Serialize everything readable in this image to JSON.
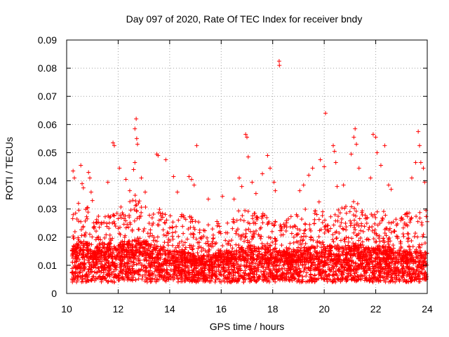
{
  "chart_data": {
    "type": "scatter",
    "title": "Day 097 of 2020, Rate Of TEC Index for receiver bndy",
    "xlabel": "GPS time / hours",
    "ylabel": "ROTI / TECUs",
    "xlim": [
      10,
      24
    ],
    "ylim": [
      0,
      0.09
    ],
    "grid": true,
    "marker": "plus",
    "color": "#ff0000",
    "x_ticks": [
      {
        "value": 10,
        "label": "10"
      },
      {
        "value": 12,
        "label": "12"
      },
      {
        "value": 14,
        "label": "14"
      },
      {
        "value": 16,
        "label": "16"
      },
      {
        "value": 18,
        "label": "18"
      },
      {
        "value": 20,
        "label": "20"
      },
      {
        "value": 22,
        "label": "22"
      },
      {
        "value": 24,
        "label": "24"
      }
    ],
    "y_ticks": [
      {
        "value": 0,
        "label": "0"
      },
      {
        "value": 0.01,
        "label": "0.01"
      },
      {
        "value": 0.02,
        "label": "0.02"
      },
      {
        "value": 0.03,
        "label": "0.03"
      },
      {
        "value": 0.04,
        "label": "0.04"
      },
      {
        "value": 0.05,
        "label": "0.05"
      },
      {
        "value": 0.06,
        "label": "0.06"
      },
      {
        "value": 0.07,
        "label": "0.07"
      },
      {
        "value": 0.08,
        "label": "0.08"
      },
      {
        "value": 0.09,
        "label": "0.09"
      }
    ],
    "series": [
      {
        "name": "ROTI",
        "points": [
          [
            10.25,
            0.0435
          ],
          [
            10.3,
            0.041
          ],
          [
            10.55,
            0.0455
          ],
          [
            10.6,
            0.039
          ],
          [
            10.65,
            0.0375
          ],
          [
            10.85,
            0.043
          ],
          [
            10.9,
            0.041
          ],
          [
            10.95,
            0.036
          ],
          [
            11.0,
            0.033
          ],
          [
            11.6,
            0.0395
          ],
          [
            11.8,
            0.0535
          ],
          [
            11.85,
            0.0525
          ],
          [
            12.05,
            0.0445
          ],
          [
            12.3,
            0.0405
          ],
          [
            12.45,
            0.0365
          ],
          [
            12.6,
            0.044
          ],
          [
            12.65,
            0.0465
          ],
          [
            12.65,
            0.0585
          ],
          [
            12.7,
            0.062
          ],
          [
            12.72,
            0.055
          ],
          [
            12.75,
            0.053
          ],
          [
            12.9,
            0.041
          ],
          [
            13.05,
            0.036
          ],
          [
            13.5,
            0.0495
          ],
          [
            13.55,
            0.049
          ],
          [
            13.85,
            0.0475
          ],
          [
            14.15,
            0.0415
          ],
          [
            14.3,
            0.036
          ],
          [
            14.75,
            0.0415
          ],
          [
            14.85,
            0.0405
          ],
          [
            14.95,
            0.0385
          ],
          [
            15.05,
            0.0525
          ],
          [
            15.5,
            0.0335
          ],
          [
            16.05,
            0.0345
          ],
          [
            16.5,
            0.0335
          ],
          [
            16.7,
            0.041
          ],
          [
            16.8,
            0.038
          ],
          [
            16.95,
            0.0565
          ],
          [
            17.0,
            0.0555
          ],
          [
            17.05,
            0.0485
          ],
          [
            17.2,
            0.0395
          ],
          [
            17.35,
            0.0355
          ],
          [
            17.6,
            0.0425
          ],
          [
            17.8,
            0.049
          ],
          [
            17.9,
            0.0445
          ],
          [
            18.05,
            0.0395
          ],
          [
            18.1,
            0.0365
          ],
          [
            18.25,
            0.0825
          ],
          [
            18.26,
            0.081
          ],
          [
            19.05,
            0.0365
          ],
          [
            19.2,
            0.0385
          ],
          [
            19.4,
            0.042
          ],
          [
            19.55,
            0.0445
          ],
          [
            19.8,
            0.0325
          ],
          [
            19.85,
            0.0475
          ],
          [
            20.0,
            0.045
          ],
          [
            20.05,
            0.064
          ],
          [
            20.35,
            0.0525
          ],
          [
            20.4,
            0.0505
          ],
          [
            20.45,
            0.0465
          ],
          [
            20.5,
            0.038
          ],
          [
            20.75,
            0.0385
          ],
          [
            21.05,
            0.0495
          ],
          [
            21.15,
            0.0555
          ],
          [
            21.2,
            0.0585
          ],
          [
            21.25,
            0.053
          ],
          [
            21.35,
            0.0445
          ],
          [
            21.8,
            0.041
          ],
          [
            21.9,
            0.0565
          ],
          [
            22.0,
            0.0555
          ],
          [
            22.05,
            0.05
          ],
          [
            22.2,
            0.0455
          ],
          [
            22.35,
            0.0525
          ],
          [
            22.5,
            0.0385
          ],
          [
            22.6,
            0.037
          ],
          [
            23.4,
            0.041
          ],
          [
            23.55,
            0.0465
          ],
          [
            23.65,
            0.0575
          ],
          [
            23.7,
            0.0525
          ],
          [
            23.75,
            0.0465
          ],
          [
            23.85,
            0.0445
          ],
          [
            23.9,
            0.0395
          ],
          [
            23.95,
            0.0295
          ],
          [
            24.0,
            0.0255
          ]
        ],
        "dense_envelope": [
          [
            10.2,
            0.012,
            0.03
          ],
          [
            10.5,
            0.013,
            0.033
          ],
          [
            10.8,
            0.013,
            0.031
          ],
          [
            11.0,
            0.012,
            0.029
          ],
          [
            11.3,
            0.012,
            0.027
          ],
          [
            11.5,
            0.013,
            0.029
          ],
          [
            11.8,
            0.012,
            0.028
          ],
          [
            12.1,
            0.013,
            0.031
          ],
          [
            12.4,
            0.013,
            0.033
          ],
          [
            12.8,
            0.014,
            0.036
          ],
          [
            13.1,
            0.013,
            0.032
          ],
          [
            13.4,
            0.012,
            0.029
          ],
          [
            13.7,
            0.012,
            0.031
          ],
          [
            14.0,
            0.011,
            0.028
          ],
          [
            14.3,
            0.011,
            0.027
          ],
          [
            14.6,
            0.011,
            0.029
          ],
          [
            15.0,
            0.01,
            0.026
          ],
          [
            15.3,
            0.01,
            0.025
          ],
          [
            15.6,
            0.01,
            0.025
          ],
          [
            16.0,
            0.011,
            0.027
          ],
          [
            16.4,
            0.011,
            0.028
          ],
          [
            16.8,
            0.012,
            0.031
          ],
          [
            17.2,
            0.012,
            0.03
          ],
          [
            17.6,
            0.012,
            0.029
          ],
          [
            18.0,
            0.011,
            0.027
          ],
          [
            18.4,
            0.011,
            0.026
          ],
          [
            18.8,
            0.011,
            0.028
          ],
          [
            19.2,
            0.012,
            0.03
          ],
          [
            19.6,
            0.012,
            0.031
          ],
          [
            20.0,
            0.012,
            0.029
          ],
          [
            20.4,
            0.012,
            0.03
          ],
          [
            20.8,
            0.012,
            0.031
          ],
          [
            21.2,
            0.013,
            0.033
          ],
          [
            21.6,
            0.012,
            0.029
          ],
          [
            22.0,
            0.012,
            0.03
          ],
          [
            22.4,
            0.012,
            0.029
          ],
          [
            22.8,
            0.011,
            0.028
          ],
          [
            23.2,
            0.011,
            0.029
          ],
          [
            23.6,
            0.011,
            0.031
          ],
          [
            24.0,
            0.011,
            0.028
          ]
        ]
      }
    ]
  }
}
